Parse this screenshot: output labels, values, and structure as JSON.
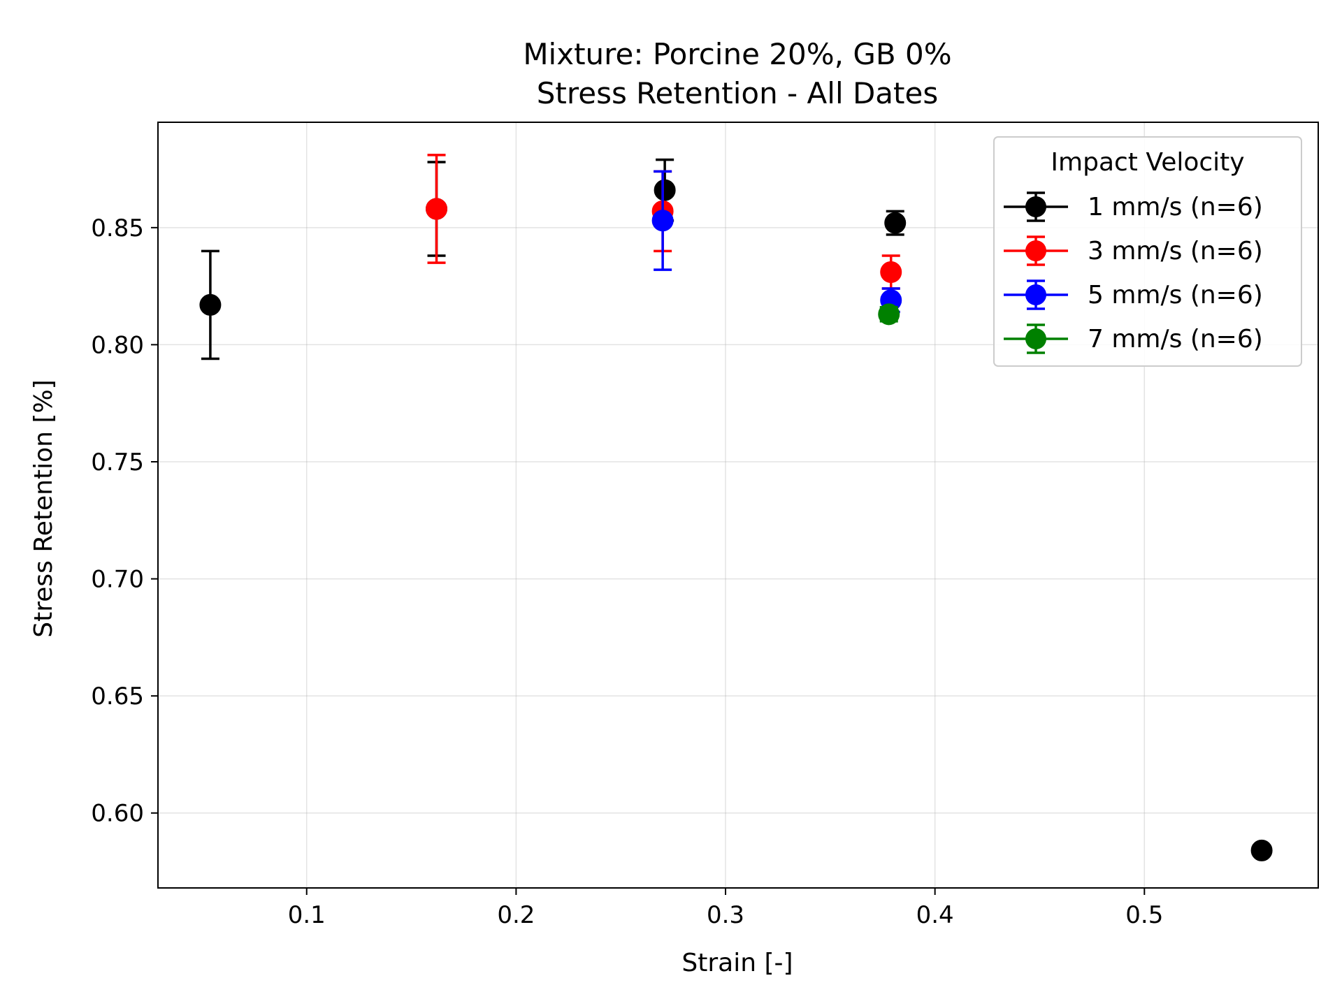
{
  "chart_data": {
    "type": "scatter",
    "title": "Mixture: Porcine 20%, GB 0%",
    "subtitle": "Stress Retention - All Dates",
    "xlabel": "Strain [-]",
    "ylabel": "Stress Retention [%]",
    "xlim": [
      0.029,
      0.583
    ],
    "ylim": [
      0.568,
      0.895
    ],
    "xticks": [
      0.1,
      0.2,
      0.3,
      0.4,
      0.5
    ],
    "xtick_labels": [
      "0.1",
      "0.2",
      "0.3",
      "0.4",
      "0.5"
    ],
    "yticks": [
      0.6,
      0.65,
      0.7,
      0.75,
      0.8,
      0.85
    ],
    "ytick_labels": [
      "0.60",
      "0.65",
      "0.70",
      "0.75",
      "0.80",
      "0.85"
    ],
    "grid": true,
    "legend": {
      "title": "Impact Velocity",
      "placement": "top-right"
    },
    "series": [
      {
        "name": "1 mm/s (n=6)",
        "color": "#000000",
        "points": [
          {
            "x": 0.054,
            "y": 0.817,
            "yerr": 0.023
          },
          {
            "x": 0.162,
            "y": 0.858,
            "yerr": 0.02
          },
          {
            "x": 0.271,
            "y": 0.866,
            "yerr": 0.013
          },
          {
            "x": 0.381,
            "y": 0.852,
            "yerr": 0.005
          },
          {
            "x": 0.556,
            "y": 0.584,
            "yerr": 0
          }
        ]
      },
      {
        "name": "3 mm/s (n=6)",
        "color": "#ff0000",
        "points": [
          {
            "x": 0.162,
            "y": 0.858,
            "yerr": 0.023
          },
          {
            "x": 0.27,
            "y": 0.857,
            "yerr": 0.017
          },
          {
            "x": 0.379,
            "y": 0.831,
            "yerr": 0.007
          }
        ]
      },
      {
        "name": "5 mm/s (n=6)",
        "color": "#0000ff",
        "points": [
          {
            "x": 0.27,
            "y": 0.853,
            "yerr": 0.021
          },
          {
            "x": 0.379,
            "y": 0.819,
            "yerr": 0.005
          }
        ]
      },
      {
        "name": "7 mm/s (n=6)",
        "color": "#008000",
        "points": [
          {
            "x": 0.378,
            "y": 0.813,
            "yerr": 0.003
          }
        ]
      }
    ]
  }
}
